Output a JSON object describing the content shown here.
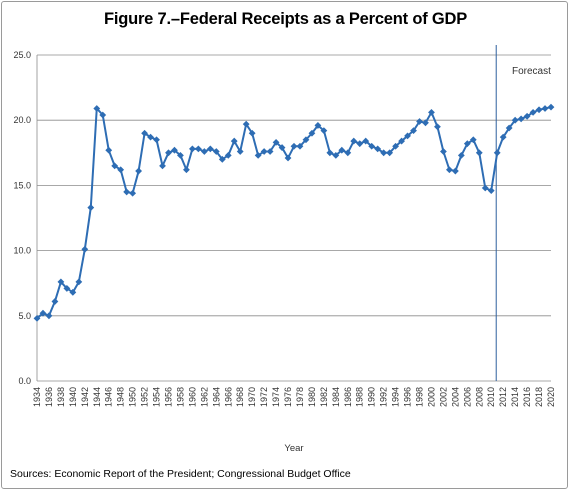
{
  "chart_data": {
    "type": "line",
    "title": "Figure 7.–Federal Receipts as a Percent of GDP",
    "xlabel": "Year",
    "ylabel": "",
    "ylim": [
      0,
      25
    ],
    "y_ticks": [
      "0.0",
      "5.0",
      "10.0",
      "15.0",
      "20.0",
      "25.0"
    ],
    "x_tick_labels": [
      "1934",
      "1936",
      "1938",
      "1940",
      "1942",
      "1944",
      "1946",
      "1948",
      "1950",
      "1952",
      "1954",
      "1956",
      "1958",
      "1960",
      "1962",
      "1964",
      "1966",
      "1968",
      "1970",
      "1972",
      "1974",
      "1976",
      "1978",
      "1980",
      "1982",
      "1984",
      "1986",
      "1988",
      "1990",
      "1992",
      "1994",
      "1996",
      "1998",
      "2000",
      "2002",
      "2004",
      "2006",
      "2008",
      "2010",
      "2012",
      "2014",
      "2016",
      "2018",
      "2020"
    ],
    "grid": "horizontal",
    "color": "#2e6db4",
    "forecast_start_year": 2011,
    "forecast_label": "Forecast",
    "x": [
      1934,
      1935,
      1936,
      1937,
      1938,
      1939,
      1940,
      1941,
      1942,
      1943,
      1944,
      1945,
      1946,
      1947,
      1948,
      1949,
      1950,
      1951,
      1952,
      1953,
      1954,
      1955,
      1956,
      1957,
      1958,
      1959,
      1960,
      1961,
      1962,
      1963,
      1964,
      1965,
      1966,
      1967,
      1968,
      1969,
      1970,
      1971,
      1972,
      1973,
      1974,
      1975,
      1976,
      1977,
      1978,
      1979,
      1980,
      1981,
      1982,
      1983,
      1984,
      1985,
      1986,
      1987,
      1988,
      1989,
      1990,
      1991,
      1992,
      1993,
      1994,
      1995,
      1996,
      1997,
      1998,
      1999,
      2000,
      2001,
      2002,
      2003,
      2004,
      2005,
      2006,
      2007,
      2008,
      2009,
      2010,
      2011,
      2012,
      2013,
      2014,
      2015,
      2016,
      2017,
      2018,
      2019,
      2020
    ],
    "series": [
      {
        "values": [
          4.8,
          5.2,
          5.0,
          6.1,
          7.6,
          7.1,
          6.8,
          7.6,
          10.1,
          13.3,
          20.9,
          20.4,
          17.7,
          16.5,
          16.2,
          14.5,
          14.4,
          16.1,
          19.0,
          18.7,
          18.5,
          16.5,
          17.5,
          17.7,
          17.3,
          16.2,
          17.8,
          17.8,
          17.6,
          17.8,
          17.6,
          17.0,
          17.3,
          18.4,
          17.6,
          19.7,
          19.0,
          17.3,
          17.6,
          17.6,
          18.3,
          17.9,
          17.1,
          18.0,
          18.0,
          18.5,
          19.0,
          19.6,
          19.2,
          17.5,
          17.3,
          17.7,
          17.5,
          18.4,
          18.2,
          18.4,
          18.0,
          17.8,
          17.5,
          17.5,
          18.0,
          18.4,
          18.8,
          19.2,
          19.9,
          19.8,
          20.6,
          19.5,
          17.6,
          16.2,
          16.1,
          17.3,
          18.2,
          18.5,
          17.5,
          14.8,
          14.6,
          17.5,
          18.7,
          19.4,
          20.0,
          20.1,
          20.3,
          20.6,
          20.8,
          20.9,
          21.0
        ]
      }
    ]
  },
  "source_note": "Sources: Economic Report of the President; Congressional Budget Office"
}
